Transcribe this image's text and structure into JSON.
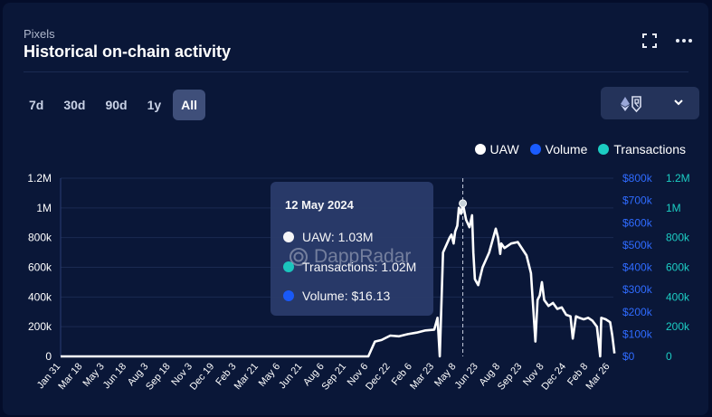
{
  "header": {
    "subtitle": "Pixels",
    "title": "Historical on-chain activity",
    "fullscreen_icon": "expand-icon",
    "more_icon": "more-horizontal-icon"
  },
  "tabs": [
    {
      "label": "7d",
      "active": false
    },
    {
      "label": "30d",
      "active": false
    },
    {
      "label": "90d",
      "active": false
    },
    {
      "label": "1y",
      "active": false
    },
    {
      "label": "All",
      "active": true
    }
  ],
  "chain_selector": {
    "icons": [
      "ethereum-icon",
      "ronin-icon"
    ],
    "chevron": "chevron-down-icon"
  },
  "legend": [
    {
      "label": "UAW",
      "color": "#ffffff"
    },
    {
      "label": "Volume",
      "color": "#1a5cff"
    },
    {
      "label": "Transactions",
      "color": "#1ccdc3"
    }
  ],
  "tooltip": {
    "date": "12 May 2024",
    "uaw": "UAW: 1.03M",
    "transactions": "Transactions: 1.02M",
    "volume": "Volume: $16.13"
  },
  "watermark": "DappRadar",
  "colors": {
    "uaw": "#ffffff",
    "volume": "#1a5cff",
    "transactions": "#1ccdc3",
    "grid": "#1b2a52"
  },
  "chart_data": {
    "type": "line",
    "x_ticks": [
      "Jan 31",
      "Mar 18",
      "May 3",
      "Jun 18",
      "Aug 3",
      "Sep 18",
      "Nov 3",
      "Dec 19",
      "Feb 3",
      "Mar 21",
      "May 6",
      "Jun 21",
      "Aug 6",
      "Sep 21",
      "Nov 6",
      "Dec 22",
      "Feb 6",
      "Mar 23",
      "May 8",
      "Jun 23",
      "Aug 8",
      "Sep 23",
      "Nov 8",
      "Dec 24",
      "Feb 8",
      "Mar 26"
    ],
    "y_left": {
      "ticks": [
        "0",
        "200k",
        "400k",
        "600k",
        "800k",
        "1M",
        "1.2M"
      ],
      "ylim": [
        0,
        1200000
      ]
    },
    "y_right_volume": {
      "ticks": [
        "$0",
        "$100k",
        "$200k",
        "$300k",
        "$400k",
        "$500k",
        "$600k",
        "$700k",
        "$800k"
      ],
      "ylim": [
        0,
        800000
      ]
    },
    "y_right_transactions": {
      "ticks": [
        "0",
        "200k",
        "400k",
        "600k",
        "800k",
        "1M",
        "1.2M"
      ],
      "ylim": [
        0,
        1200000
      ]
    },
    "series": [
      {
        "name": "UAW",
        "x_index": [
          0,
          14.0,
          14.3,
          14.6,
          15.0,
          15.4,
          15.8,
          16.2,
          16.6,
          17.0,
          17.15,
          17.25,
          17.4,
          17.7,
          17.78,
          17.88,
          17.95,
          18.05,
          18.12,
          18.22,
          18.3,
          18.45,
          18.6,
          18.72,
          18.78,
          18.85,
          19.0,
          19.2,
          19.5,
          19.8,
          19.9,
          20.0,
          20.05,
          20.2,
          20.5,
          20.8,
          21.2,
          21.4,
          21.6,
          21.7,
          21.8,
          21.9,
          22.0,
          22.2,
          22.4,
          22.6,
          22.8,
          23.0,
          23.2,
          23.3,
          23.45,
          23.6,
          23.8,
          24.0,
          24.2,
          24.4,
          24.55,
          24.6,
          24.8,
          25.0,
          25.1,
          25.2
        ],
        "values": [
          0,
          0,
          100000,
          110000,
          140000,
          135000,
          150000,
          160000,
          175000,
          180000,
          260000,
          0,
          700000,
          800000,
          820000,
          760000,
          840000,
          880000,
          1000000,
          960000,
          1030000,
          920000,
          870000,
          950000,
          700000,
          520000,
          480000,
          600000,
          700000,
          860000,
          800000,
          690000,
          760000,
          730000,
          760000,
          770000,
          680000,
          560000,
          100000,
          380000,
          410000,
          500000,
          380000,
          340000,
          360000,
          320000,
          330000,
          280000,
          270000,
          120000,
          270000,
          260000,
          250000,
          260000,
          240000,
          200000,
          0,
          260000,
          250000,
          230000,
          140000,
          20000
        ]
      },
      {
        "name": "Volume",
        "values": [
          0
        ]
      },
      {
        "name": "Transactions",
        "values": [
          0
        ]
      }
    ],
    "highlight": {
      "date": "12 May 2024",
      "uaw": 1030000,
      "transactions": 1020000,
      "volume": 16.13
    }
  }
}
